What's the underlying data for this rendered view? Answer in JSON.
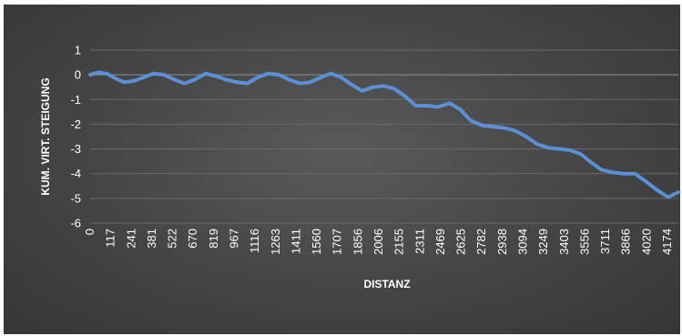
{
  "chart_data": {
    "type": "line",
    "xlabel": "DISTANZ",
    "ylabel": "KUM. VIRT. STEIGUNG",
    "ylim": [
      -6,
      1
    ],
    "yticks": [
      -6,
      -5,
      -4,
      -3,
      -2,
      -1,
      0,
      1
    ],
    "grid": true,
    "legend": "none",
    "line_color": "#5b8fd6",
    "background_color": "#4a4a4a",
    "x_tick_labels": [
      "0",
      "117",
      "241",
      "381",
      "522",
      "670",
      "819",
      "967",
      "1116",
      "1263",
      "1411",
      "1560",
      "1707",
      "1856",
      "2006",
      "2155",
      "2311",
      "2469",
      "2625",
      "2782",
      "2938",
      "3094",
      "3249",
      "3403",
      "3556",
      "3711",
      "3866",
      "4020",
      "4174"
    ],
    "series": [
      {
        "x": [
          0,
          60,
          117,
          180,
          241,
          310,
          381,
          450,
          522,
          600,
          670,
          740,
          819,
          890,
          967,
          1040,
          1116,
          1190,
          1263,
          1340,
          1411,
          1490,
          1560,
          1640,
          1707,
          1780,
          1856,
          1930,
          2006,
          2080,
          2155,
          2230,
          2311,
          2390,
          2469,
          2550,
          2625,
          2700,
          2782,
          2860,
          2938,
          3010,
          3094,
          3170,
          3249,
          3330,
          3403,
          3480,
          3556,
          3630,
          3711,
          3790,
          3866,
          3940,
          4020,
          4100,
          4174
        ],
        "values": [
          0.0,
          0.1,
          0.05,
          -0.15,
          -0.3,
          -0.25,
          -0.1,
          0.05,
          0.0,
          -0.2,
          -0.35,
          -0.2,
          0.05,
          -0.05,
          -0.2,
          -0.3,
          -0.35,
          -0.1,
          0.05,
          0.0,
          -0.2,
          -0.35,
          -0.3,
          -0.1,
          0.05,
          -0.1,
          -0.4,
          -0.65,
          -0.5,
          -0.45,
          -0.55,
          -0.85,
          -1.25,
          -1.25,
          -1.3,
          -1.15,
          -1.4,
          -1.85,
          -2.05,
          -2.1,
          -2.15,
          -2.25,
          -2.5,
          -2.8,
          -2.95,
          -3.0,
          -3.05,
          -3.2,
          -3.55,
          -3.85,
          -3.95,
          -4.0,
          -4.0,
          -4.3,
          -4.65,
          -4.95,
          -4.75
        ]
      }
    ]
  }
}
